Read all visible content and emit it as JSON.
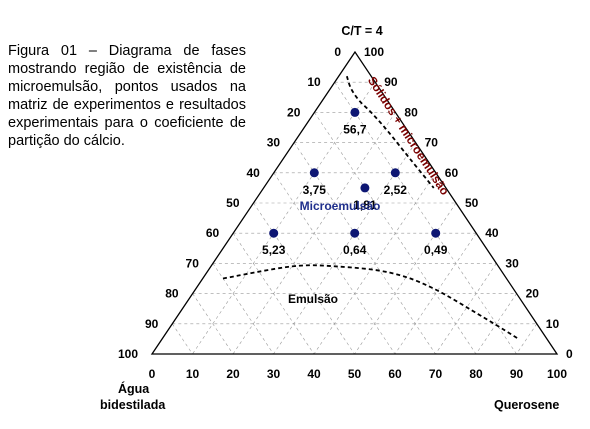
{
  "caption": "Figura 01 – Diagrama de fases mostrando região de existência de microemulsão, pontos usados na matriz de experimentos e resultados experimentais para o coeficiente de partição do cálcio.",
  "vertex_labels": {
    "top": "C/T = 4",
    "left_line1": "Água",
    "left_line2": "bidestilada",
    "right": "Querosene"
  },
  "region_labels": {
    "microemulsion": "Microemulsão",
    "emulsion": "Emulsão",
    "solid": "Sólidos + microemulsão"
  },
  "colors": {
    "microemulsion": "#1f2f8c",
    "solid": "#7a0000",
    "points": "#0d1673",
    "grid": "#999999"
  },
  "axis_ticks": {
    "bottom": [
      "0",
      "10",
      "20",
      "30",
      "40",
      "50",
      "60",
      "70",
      "80",
      "90",
      "100"
    ],
    "left": [
      "0",
      "10",
      "20",
      "30",
      "40",
      "50",
      "60",
      "70",
      "80",
      "90",
      "100"
    ],
    "right": [
      "0",
      "10",
      "20",
      "30",
      "40",
      "50",
      "60",
      "70",
      "80",
      "90",
      "100"
    ]
  },
  "chart_data": {
    "type": "scatter",
    "subtype": "ternary",
    "title": "C/T = 4",
    "vertices": [
      "C/T = 4",
      "Água bidestilada",
      "Querosene"
    ],
    "points": [
      {
        "label": "56,7",
        "ct": 80,
        "water": 10,
        "kerosene": 10
      },
      {
        "label": "3,75",
        "ct": 60,
        "water": 30,
        "kerosene": 10
      },
      {
        "label": "1,81",
        "ct": 55,
        "water": 20,
        "kerosene": 25
      },
      {
        "label": "2,52",
        "ct": 60,
        "water": 10,
        "kerosene": 30
      },
      {
        "label": "5,23",
        "ct": 40,
        "water": 50,
        "kerosene": 10
      },
      {
        "label": "0,64",
        "ct": 40,
        "water": 30,
        "kerosene": 30
      },
      {
        "label": "0,49",
        "ct": 40,
        "water": 10,
        "kerosene": 50
      }
    ],
    "boundaries": [
      {
        "name": "emulsion",
        "points": [
          [
            25,
            70,
            5
          ],
          [
            29,
            51,
            20
          ],
          [
            29,
            40,
            31
          ],
          [
            27,
            28,
            45
          ],
          [
            22,
            20,
            58
          ],
          [
            12,
            12,
            76
          ],
          [
            5,
            7,
            88
          ]
        ]
      },
      {
        "name": "solid",
        "points": [
          [
            92,
            6,
            2
          ],
          [
            88,
            7,
            5
          ],
          [
            84,
            7,
            9
          ],
          [
            80,
            6,
            14
          ],
          [
            74,
            5,
            21
          ],
          [
            64,
            4,
            32
          ],
          [
            55,
            3,
            42
          ]
        ]
      }
    ]
  }
}
